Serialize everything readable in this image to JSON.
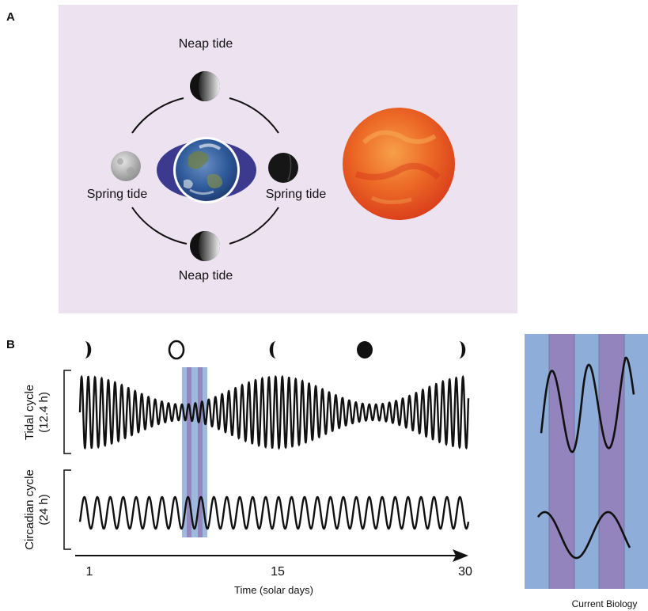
{
  "panel_a": {
    "letter": "A",
    "neap_top": "Neap tide",
    "neap_bottom": "Neap tide",
    "spring_left": "Spring tide",
    "spring_right": "Spring tide"
  },
  "panel_b": {
    "letter": "B",
    "tidal_label_1": "Tidal cycle",
    "tidal_label_2": "(12.4 h)",
    "circ_label_1": "Circadian cycle",
    "circ_label_2": "(24 h)",
    "x_ticks": [
      "1",
      "15",
      "30"
    ],
    "x_label": "Time (solar days)",
    "moon_phases": [
      "first-quarter",
      "full",
      "last-quarter",
      "new",
      "first-quarter"
    ],
    "tidal_period_h": 12.4,
    "circadian_period_h": 24,
    "days": 30
  },
  "credit": "Current Biology",
  "colors": {
    "panel_bg": "#ede2f0",
    "earth_bulge": "#3b3a8e",
    "sun": "#e8541e",
    "band_blue": "#8eadd8",
    "band_purple": "#9384bd",
    "curve": "#111111"
  }
}
